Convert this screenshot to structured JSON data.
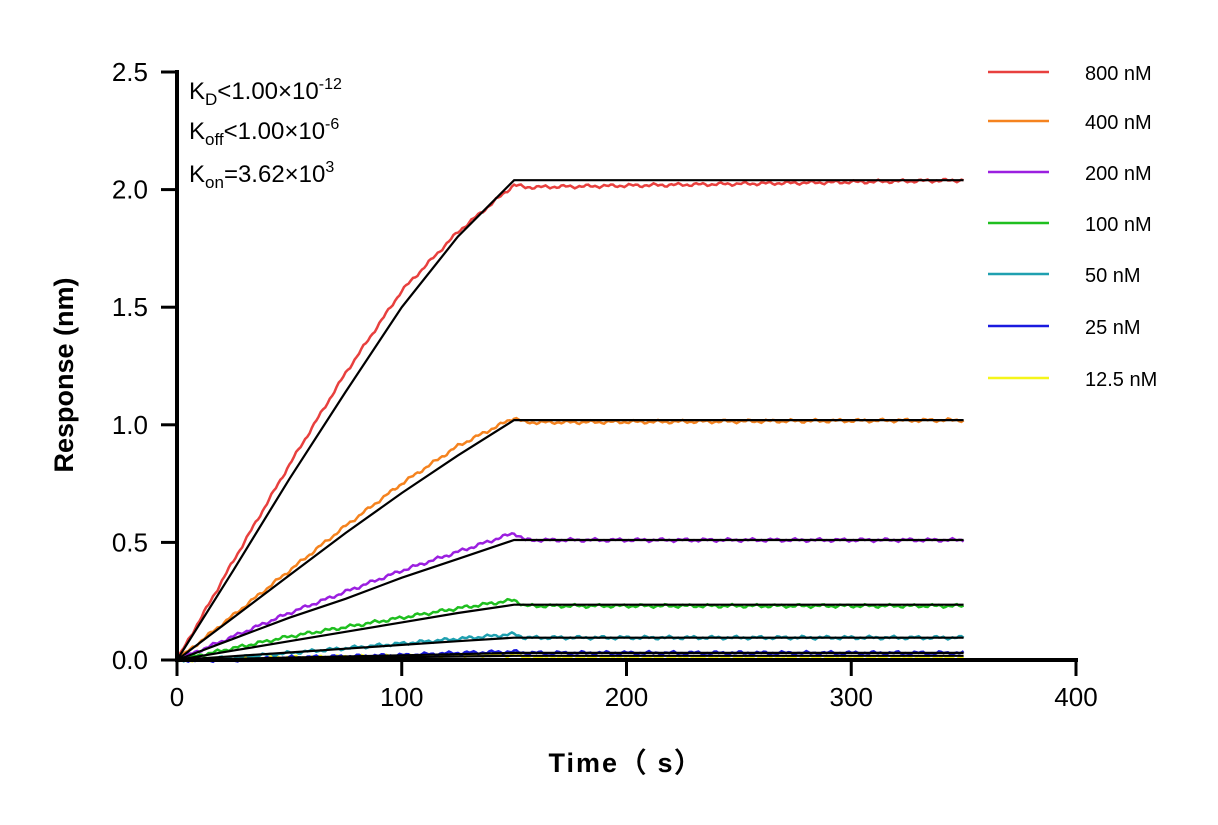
{
  "chart_data": {
    "type": "line",
    "title": "",
    "xlabel": "Time（ s）",
    "ylabel": "Response (nm)",
    "xlim": [
      0,
      400
    ],
    "ylim": [
      0,
      2.5
    ],
    "xticks": [
      "0",
      "100",
      "200",
      "300",
      "400"
    ],
    "yticks": [
      "0.0",
      "0.5",
      "1.0",
      "1.5",
      "2.0",
      "2.5"
    ],
    "legend_position": "right",
    "annotations": {
      "kd": {
        "k": "K",
        "sub": "D",
        "rel": "<1.00×10",
        "exp": "-12"
      },
      "koff": {
        "k": "K",
        "sub": "off",
        "rel": "<1.00×10",
        "exp": "-6"
      },
      "kon": {
        "k": "K",
        "sub": "on",
        "rel": "=3.62×10",
        "exp": "3"
      }
    },
    "x": [
      0,
      25,
      50,
      75,
      100,
      125,
      150,
      155,
      350
    ],
    "series": [
      {
        "name": "800 nM",
        "color": "#e8403e",
        "values": [
          0,
          0.42,
          0.83,
          1.22,
          1.57,
          1.82,
          2.02,
          2.01,
          2.04
        ],
        "fit": [
          0,
          0.38,
          0.77,
          1.14,
          1.5,
          1.8,
          2.04,
          2.04,
          2.04
        ]
      },
      {
        "name": "400 nM",
        "color": "#f5831f",
        "values": [
          0,
          0.19,
          0.38,
          0.57,
          0.75,
          0.91,
          1.03,
          1.01,
          1.02
        ],
        "fit": [
          0,
          0.18,
          0.36,
          0.54,
          0.71,
          0.87,
          1.02,
          1.02,
          1.02
        ]
      },
      {
        "name": "200 nM",
        "color": "#9b1fe0",
        "values": [
          0,
          0.1,
          0.2,
          0.29,
          0.38,
          0.46,
          0.54,
          0.51,
          0.51
        ],
        "fit": [
          0,
          0.09,
          0.18,
          0.26,
          0.35,
          0.43,
          0.51,
          0.51,
          0.51
        ]
      },
      {
        "name": "100 nM",
        "color": "#1fbf1f",
        "values": [
          0,
          0.05,
          0.1,
          0.14,
          0.18,
          0.22,
          0.255,
          0.23,
          0.23
        ],
        "fit": [
          0,
          0.04,
          0.08,
          0.12,
          0.16,
          0.2,
          0.235,
          0.235,
          0.235
        ]
      },
      {
        "name": "50 nM",
        "color": "#1fa0b0",
        "values": [
          0,
          0.01,
          0.03,
          0.05,
          0.07,
          0.09,
          0.11,
          0.095,
          0.095
        ],
        "fit": [
          0,
          0.016,
          0.032,
          0.048,
          0.064,
          0.08,
          0.095,
          0.095,
          0.095
        ]
      },
      {
        "name": "25 nM",
        "color": "#1a1adf",
        "values": [
          0,
          0.0,
          0.01,
          0.015,
          0.02,
          0.03,
          0.035,
          0.03,
          0.03
        ],
        "fit": [
          0,
          0.005,
          0.01,
          0.015,
          0.02,
          0.025,
          0.03,
          0.03,
          0.03
        ]
      },
      {
        "name": "12.5 nM",
        "color": "#f5f51a",
        "values": [
          0,
          0.005,
          0.01,
          0.013,
          0.016,
          0.02,
          0.02,
          0.01,
          0.01
        ],
        "fit": [
          0,
          0.003,
          0.006,
          0.009,
          0.012,
          0.015,
          0.018,
          0.018,
          0.018
        ]
      }
    ]
  }
}
